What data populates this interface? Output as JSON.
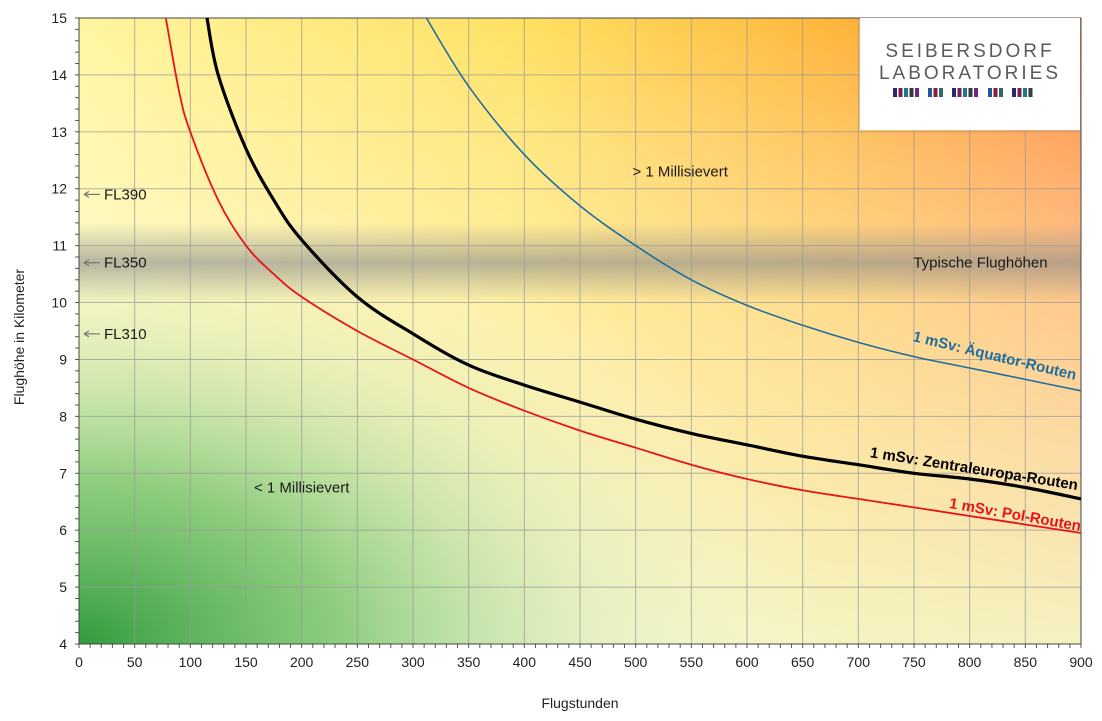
{
  "chart_data": {
    "type": "line",
    "xlabel": "Flugstunden",
    "ylabel": "Flughöhe in Kilometer",
    "xlim": [
      0,
      900
    ],
    "ylim": [
      4,
      15
    ],
    "x_ticks": [
      0,
      50,
      100,
      150,
      200,
      250,
      300,
      350,
      400,
      450,
      500,
      550,
      600,
      650,
      700,
      750,
      800,
      850,
      900
    ],
    "y_ticks": [
      4,
      5,
      6,
      7,
      8,
      9,
      10,
      11,
      12,
      13,
      14,
      15
    ],
    "grid": true,
    "series": [
      {
        "name": "1 mSv: Pol-Routen",
        "color": "#e8141b",
        "points": [
          [
            78,
            15
          ],
          [
            90,
            13.7
          ],
          [
            100,
            13.0
          ],
          [
            125,
            11.8
          ],
          [
            150,
            11.0
          ],
          [
            175,
            10.5
          ],
          [
            200,
            10.1
          ],
          [
            250,
            9.5
          ],
          [
            300,
            9.0
          ],
          [
            350,
            8.5
          ],
          [
            400,
            8.1
          ],
          [
            450,
            7.75
          ],
          [
            500,
            7.45
          ],
          [
            550,
            7.15
          ],
          [
            600,
            6.9
          ],
          [
            650,
            6.7
          ],
          [
            700,
            6.55
          ],
          [
            750,
            6.4
          ],
          [
            800,
            6.25
          ],
          [
            850,
            6.1
          ],
          [
            900,
            5.95
          ]
        ]
      },
      {
        "name": "1 mSv: Zentraleuropa-Routen",
        "color": "#000000",
        "points": [
          [
            115,
            15
          ],
          [
            125,
            14.0
          ],
          [
            150,
            12.7
          ],
          [
            175,
            11.8
          ],
          [
            200,
            11.1
          ],
          [
            250,
            10.1
          ],
          [
            300,
            9.45
          ],
          [
            350,
            8.9
          ],
          [
            400,
            8.55
          ],
          [
            450,
            8.25
          ],
          [
            500,
            7.95
          ],
          [
            550,
            7.7
          ],
          [
            600,
            7.5
          ],
          [
            650,
            7.3
          ],
          [
            700,
            7.15
          ],
          [
            750,
            7.0
          ],
          [
            800,
            6.9
          ],
          [
            850,
            6.75
          ],
          [
            900,
            6.55
          ]
        ]
      },
      {
        "name": "1 mSv: Äquator-Routen",
        "color": "#1f6e9e",
        "points": [
          [
            312,
            15
          ],
          [
            350,
            13.8
          ],
          [
            400,
            12.6
          ],
          [
            450,
            11.7
          ],
          [
            500,
            11.0
          ],
          [
            550,
            10.4
          ],
          [
            600,
            9.95
          ],
          [
            650,
            9.6
          ],
          [
            700,
            9.3
          ],
          [
            750,
            9.05
          ],
          [
            800,
            8.85
          ],
          [
            850,
            8.65
          ],
          [
            900,
            8.45
          ]
        ]
      }
    ],
    "annotations": [
      {
        "text": "> 1 Millisievert",
        "x": 540,
        "y": 12.3
      },
      {
        "text": "< 1 Millisievert",
        "x": 200,
        "y": 6.75
      },
      {
        "text": "Typische Flughöhen",
        "x": 870,
        "y": 10.7
      }
    ],
    "flight_levels": [
      {
        "label": "FL390",
        "y": 11.9
      },
      {
        "label": "FL350",
        "y": 10.7
      },
      {
        "label": "FL310",
        "y": 9.45
      }
    ],
    "typical_altitude_band": [
      10.0,
      11.4
    ]
  },
  "logo": {
    "line1": "SEIBERSDORF",
    "line2": "LABORATORIES"
  }
}
